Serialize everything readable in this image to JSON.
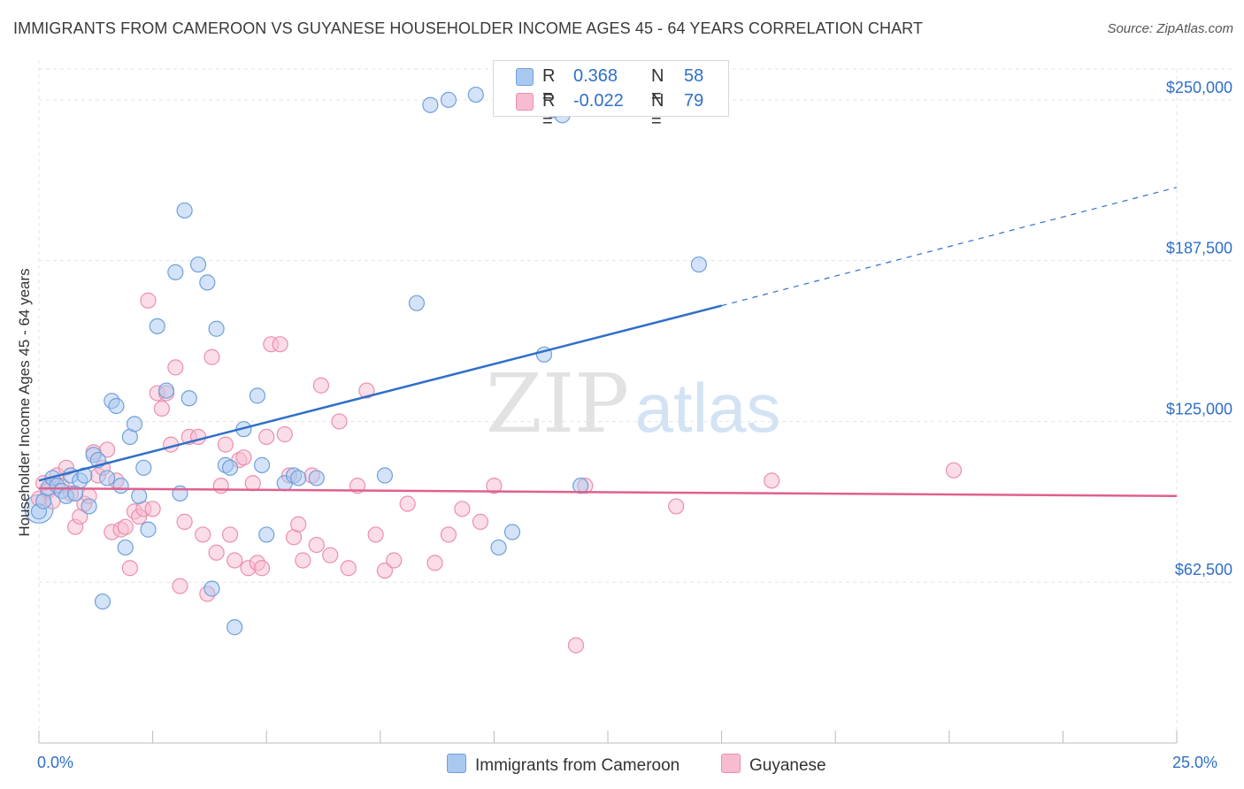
{
  "title": "IMMIGRANTS FROM CAMEROON VS GUYANESE HOUSEHOLDER INCOME AGES 45 - 64 YEARS CORRELATION CHART",
  "source": "Source: ZipAtlas.com",
  "watermark": {
    "zip": "ZIP",
    "atlas": "atlas"
  },
  "legend": {
    "series1": {
      "r_label": "R =",
      "r_value": "0.368",
      "n_label": "N =",
      "n_value": "58"
    },
    "series2": {
      "r_label": "R =",
      "r_value": "-0.022",
      "n_label": "N =",
      "n_value": "79"
    }
  },
  "bottom_legend": {
    "series1": "Immigrants from Cameroon",
    "series2": "Guyanese"
  },
  "colors": {
    "blue_fill": "#a9c8f0",
    "blue_stroke": "#6fa0dc",
    "blue_line": "#2f6fc9",
    "pink_fill": "#f7bcd0",
    "pink_stroke": "#eb8fae",
    "pink_line": "#e0608e",
    "grid": "#e4e4e4",
    "tick_text": "#2f6fc9"
  },
  "chart_data": {
    "type": "scatter",
    "title": "IMMIGRANTS FROM CAMEROON VS GUYANESE HOUSEHOLDER INCOME AGES 45 - 64 YEARS CORRELATION CHART",
    "xlabel": "",
    "ylabel": "Householder Income Ages 45 - 64 years",
    "xlim": [
      0,
      25
    ],
    "ylim": [
      0,
      262000
    ],
    "x_tick_labels": {
      "min": "0.0%",
      "max": "25.0%"
    },
    "y_ticks": [
      {
        "value": 62500,
        "label": "$62,500"
      },
      {
        "value": 125000,
        "label": "$125,000"
      },
      {
        "value": 187500,
        "label": "$187,500"
      },
      {
        "value": 250000,
        "label": "$250,000"
      }
    ],
    "series": [
      {
        "name": "Immigrants from Cameroon",
        "color": "#a9c8f0",
        "trend": {
          "x0": 0,
          "y0": 102000,
          "x1": 15,
          "y1": 170000,
          "dashed_to_x": 25,
          "dashed_to_y": 216000
        },
        "points": [
          [
            0.0,
            90000
          ],
          [
            0.1,
            94000
          ],
          [
            0.2,
            99000
          ],
          [
            0.3,
            103000
          ],
          [
            0.4,
            100000
          ],
          [
            0.5,
            98000
          ],
          [
            0.6,
            96000
          ],
          [
            0.7,
            104000
          ],
          [
            0.8,
            97000
          ],
          [
            0.9,
            102000
          ],
          [
            1.0,
            104000
          ],
          [
            1.1,
            92000
          ],
          [
            1.2,
            112000
          ],
          [
            1.3,
            110000
          ],
          [
            1.4,
            55000
          ],
          [
            1.5,
            103000
          ],
          [
            1.6,
            133000
          ],
          [
            1.7,
            131000
          ],
          [
            1.8,
            100000
          ],
          [
            1.9,
            76000
          ],
          [
            2.0,
            119000
          ],
          [
            2.1,
            124000
          ],
          [
            2.2,
            96000
          ],
          [
            2.3,
            107000
          ],
          [
            2.4,
            83000
          ],
          [
            2.6,
            162000
          ],
          [
            2.8,
            137000
          ],
          [
            3.0,
            183000
          ],
          [
            3.1,
            97000
          ],
          [
            3.2,
            207000
          ],
          [
            3.3,
            134000
          ],
          [
            3.5,
            186000
          ],
          [
            3.7,
            179000
          ],
          [
            3.8,
            60000
          ],
          [
            3.9,
            161000
          ],
          [
            4.1,
            108000
          ],
          [
            4.2,
            107000
          ],
          [
            4.3,
            45000
          ],
          [
            4.5,
            122000
          ],
          [
            4.8,
            135000
          ],
          [
            4.9,
            108000
          ],
          [
            5.0,
            81000
          ],
          [
            5.4,
            101000
          ],
          [
            5.6,
            104000
          ],
          [
            5.7,
            103000
          ],
          [
            6.1,
            103000
          ],
          [
            7.6,
            104000
          ],
          [
            8.3,
            171000
          ],
          [
            8.6,
            248000
          ],
          [
            9.0,
            250000
          ],
          [
            9.6,
            252000
          ],
          [
            10.1,
            76000
          ],
          [
            10.4,
            82000
          ],
          [
            11.1,
            151000
          ],
          [
            11.3,
            246000
          ],
          [
            11.5,
            244000
          ],
          [
            14.5,
            186000
          ],
          [
            11.9,
            100000
          ]
        ]
      },
      {
        "name": "Guyanese",
        "color": "#f7bcd0",
        "trend": {
          "x0": 0,
          "y0": 99000,
          "x1": 25,
          "y1": 96000
        },
        "points": [
          [
            0.0,
            95000
          ],
          [
            0.1,
            101000
          ],
          [
            0.2,
            98000
          ],
          [
            0.3,
            94000
          ],
          [
            0.4,
            104000
          ],
          [
            0.5,
            100000
          ],
          [
            0.6,
            107000
          ],
          [
            0.7,
            97000
          ],
          [
            0.8,
            84000
          ],
          [
            0.9,
            88000
          ],
          [
            1.0,
            93000
          ],
          [
            1.1,
            96000
          ],
          [
            1.2,
            113000
          ],
          [
            1.3,
            104000
          ],
          [
            1.4,
            107000
          ],
          [
            1.5,
            114000
          ],
          [
            1.6,
            82000
          ],
          [
            1.7,
            102000
          ],
          [
            1.8,
            83000
          ],
          [
            1.9,
            84000
          ],
          [
            2.0,
            68000
          ],
          [
            2.1,
            90000
          ],
          [
            2.2,
            88000
          ],
          [
            2.3,
            91000
          ],
          [
            2.4,
            172000
          ],
          [
            2.5,
            91000
          ],
          [
            2.6,
            136000
          ],
          [
            2.7,
            130000
          ],
          [
            2.8,
            136000
          ],
          [
            2.9,
            116000
          ],
          [
            3.0,
            146000
          ],
          [
            3.1,
            61000
          ],
          [
            3.2,
            86000
          ],
          [
            3.3,
            119000
          ],
          [
            3.5,
            119000
          ],
          [
            3.6,
            81000
          ],
          [
            3.7,
            58000
          ],
          [
            3.8,
            150000
          ],
          [
            3.9,
            74000
          ],
          [
            4.0,
            100000
          ],
          [
            4.1,
            116000
          ],
          [
            4.2,
            81000
          ],
          [
            4.3,
            71000
          ],
          [
            4.4,
            110000
          ],
          [
            4.5,
            111000
          ],
          [
            4.6,
            68000
          ],
          [
            4.7,
            101000
          ],
          [
            4.8,
            70000
          ],
          [
            4.9,
            68000
          ],
          [
            5.0,
            119000
          ],
          [
            5.1,
            155000
          ],
          [
            5.3,
            155000
          ],
          [
            5.4,
            120000
          ],
          [
            5.5,
            104000
          ],
          [
            5.6,
            80000
          ],
          [
            5.7,
            85000
          ],
          [
            5.8,
            71000
          ],
          [
            6.0,
            104000
          ],
          [
            6.1,
            77000
          ],
          [
            6.2,
            139000
          ],
          [
            6.4,
            73000
          ],
          [
            6.6,
            125000
          ],
          [
            6.8,
            68000
          ],
          [
            7.0,
            100000
          ],
          [
            7.2,
            137000
          ],
          [
            7.4,
            81000
          ],
          [
            7.6,
            67000
          ],
          [
            7.8,
            71000
          ],
          [
            8.1,
            93000
          ],
          [
            8.7,
            70000
          ],
          [
            9.0,
            81000
          ],
          [
            9.3,
            91000
          ],
          [
            9.7,
            86000
          ],
          [
            10.0,
            100000
          ],
          [
            11.8,
            38000
          ],
          [
            12.0,
            100000
          ],
          [
            14.0,
            92000
          ],
          [
            16.1,
            102000
          ],
          [
            20.1,
            106000
          ]
        ]
      }
    ]
  }
}
